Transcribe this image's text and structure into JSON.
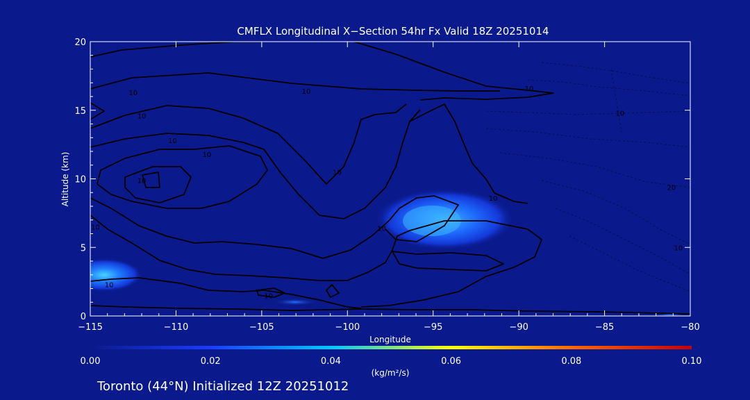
{
  "chart_data": {
    "type": "contour",
    "title": "CMFLX Longitudinal X−Section 54hr  Fx Valid 18Z 20251014",
    "xlabel": "Longitude",
    "ylabel": "Altitude (km)",
    "xlim": [
      -115,
      -80
    ],
    "ylim": [
      0,
      20
    ],
    "x_ticks": [
      -115,
      -110,
      -105,
      -100,
      -95,
      -90,
      -85,
      -80
    ],
    "x_tick_labels": [
      "−115",
      "−110",
      "−105",
      "−100",
      "−95",
      "−90",
      "−85",
      "−80"
    ],
    "y_ticks": [
      0,
      5,
      10,
      15,
      20
    ],
    "y_tick_labels": [
      "0",
      "5",
      "10",
      "15",
      "20"
    ],
    "colorbar": {
      "min": 0.0,
      "max": 0.1,
      "ticks": [
        "0.00",
        "0.02",
        "0.04",
        "0.06",
        "0.08",
        "0.10"
      ],
      "units": "(kg/m²/s)",
      "colors": [
        "#0a1a8c",
        "#1a3cff",
        "#00c8ff",
        "#ffff00",
        "#ff6600",
        "#c80000"
      ]
    },
    "flux_maxima": [
      {
        "lon": -95.0,
        "alt": 7.0,
        "value": 0.02
      },
      {
        "lon": -114.0,
        "alt": 3.0,
        "value": 0.025
      }
    ],
    "contour_labels": [
      {
        "text": "10",
        "lon": -112.5,
        "alt": 16.3
      },
      {
        "text": "10",
        "lon": -102.4,
        "alt": 16.4
      },
      {
        "text": "10",
        "lon": -112.0,
        "alt": 14.6
      },
      {
        "text": "10",
        "lon": -110.2,
        "alt": 12.8
      },
      {
        "text": "10",
        "lon": -108.2,
        "alt": 11.8
      },
      {
        "text": "10",
        "lon": -112.0,
        "alt": 9.9
      },
      {
        "text": "10",
        "lon": -100.6,
        "alt": 10.5
      },
      {
        "text": "10",
        "lon": -114.7,
        "alt": 6.5
      },
      {
        "text": "10",
        "lon": -98.0,
        "alt": 6.4
      },
      {
        "text": "10",
        "lon": -91.5,
        "alt": 8.6
      },
      {
        "text": "10",
        "lon": -113.9,
        "alt": 2.3
      },
      {
        "text": "10",
        "lon": -104.6,
        "alt": 1.5
      },
      {
        "text": "10",
        "lon": -89.4,
        "alt": 16.6
      },
      {
        "text": "10",
        "lon": -84.1,
        "alt": 14.8
      },
      {
        "text": "20",
        "lon": -81.1,
        "alt": 9.4
      },
      {
        "text": "10",
        "lon": -80.7,
        "alt": 5.0
      }
    ]
  },
  "footer": {
    "location": "Toronto (44°N) Initialized 12Z 20251012"
  }
}
